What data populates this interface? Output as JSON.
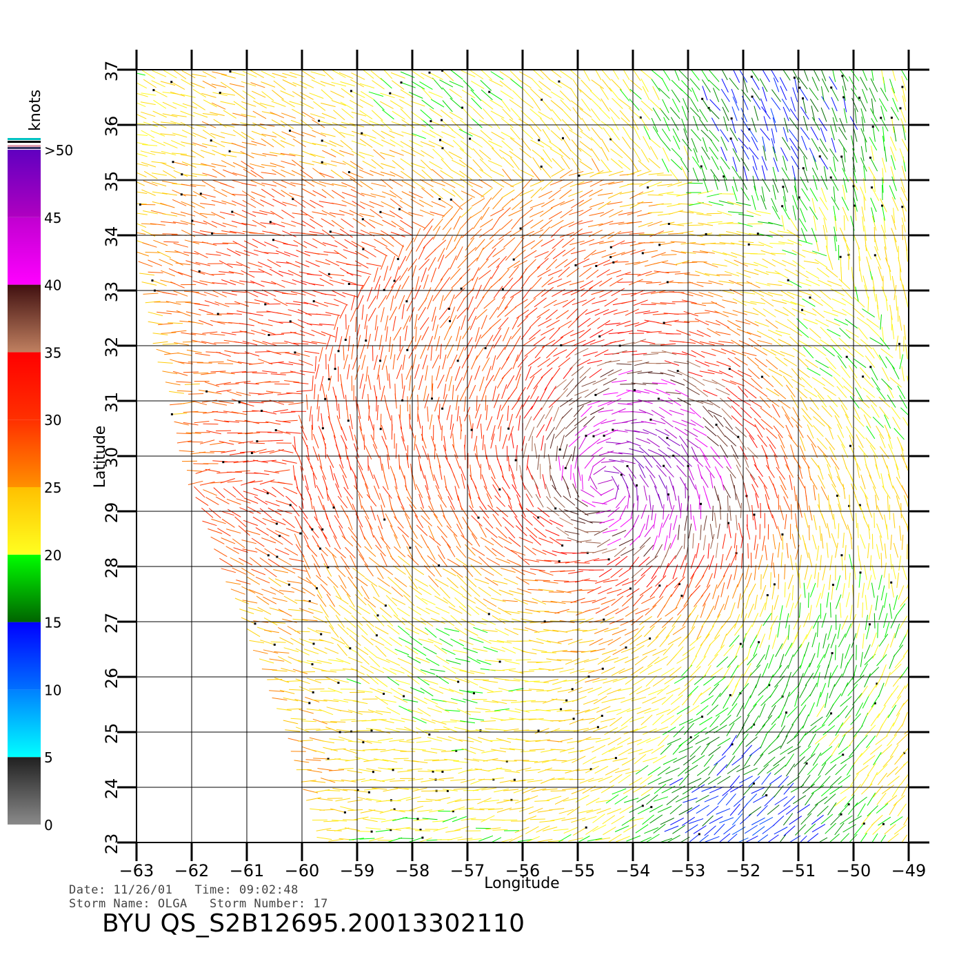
{
  "colorbar": {
    "unit": "knots",
    "labels": [
      ">50",
      "45",
      "40",
      "35",
      "30",
      "25",
      "20",
      "15",
      "10",
      "5",
      "0"
    ],
    "bins": [
      {
        "from": 0,
        "to": 5,
        "colors": [
          "#8a8a8a",
          "#202020"
        ]
      },
      {
        "from": 5,
        "to": 10,
        "colors": [
          "#00ffff",
          "#0080ff"
        ]
      },
      {
        "from": 10,
        "to": 15,
        "colors": [
          "#0070ff",
          "#0000ff"
        ]
      },
      {
        "from": 15,
        "to": 20,
        "colors": [
          "#006400",
          "#00ff00"
        ]
      },
      {
        "from": 20,
        "to": 25,
        "colors": [
          "#ffff20",
          "#ffc000"
        ]
      },
      {
        "from": 25,
        "to": 30,
        "colors": [
          "#ff9000",
          "#ff3000"
        ]
      },
      {
        "from": 30,
        "to": 35,
        "colors": [
          "#ff3000",
          "#ff0000"
        ]
      },
      {
        "from": 35,
        "to": 40,
        "colors": [
          "#c08060",
          "#401010"
        ]
      },
      {
        "from": 40,
        "to": 45,
        "colors": [
          "#ff00ff",
          "#c000d0"
        ]
      },
      {
        "from": 45,
        "to": 50,
        "colors": [
          "#b000c0",
          "#6000c0"
        ]
      }
    ]
  },
  "chart_data": {
    "type": "wind-vector-map",
    "xlabel": "Longitude",
    "ylabel": "Latitude",
    "xlim": [
      -63,
      -49
    ],
    "ylim": [
      23,
      37
    ],
    "xticks": [
      "−63",
      "−62",
      "−61",
      "−60",
      "−59",
      "−58",
      "−57",
      "−56",
      "−55",
      "−54",
      "−53",
      "−52",
      "−51",
      "−50",
      "−49"
    ],
    "yticks": [
      "23",
      "24",
      "25",
      "26",
      "27",
      "28",
      "29",
      "30",
      "31",
      "32",
      "33",
      "34",
      "35",
      "36",
      "37"
    ],
    "grid": true,
    "swath_left_edge": [
      [
        23,
        -59.6
      ],
      [
        24,
        -59.9
      ],
      [
        25,
        -60.2
      ],
      [
        26,
        -60.6
      ],
      [
        27,
        -61.0
      ],
      [
        28,
        -61.4
      ],
      [
        29,
        -61.8
      ],
      [
        30,
        -62.1
      ],
      [
        31,
        -62.3
      ],
      [
        32,
        -62.6
      ],
      [
        33,
        -62.8
      ],
      [
        34,
        -63.0
      ],
      [
        37,
        -63.0
      ]
    ],
    "speed_regions": [
      {
        "lon": -53.5,
        "lat": 30.0,
        "peak_knots": 44,
        "radius_deg": 2.2
      },
      {
        "lon": -58.5,
        "lat": 31.5,
        "peak_knots": 32,
        "radius_deg": 4.0
      },
      {
        "lon": -52.0,
        "lat": 36.0,
        "peak_knots": 16,
        "radius_deg": 2.0
      },
      {
        "lon": -52.5,
        "lat": 23.5,
        "peak_knots": 12,
        "radius_deg": 2.0
      }
    ],
    "circulation_center": {
      "lon": -54.5,
      "lat": 29.5
    }
  },
  "info": {
    "date_label": "Date:",
    "date": "11/26/01",
    "time_label": "Time:",
    "time": "09:02:48",
    "storm_name_label": "Storm Name:",
    "storm_name": "OLGA",
    "storm_number_label": "Storm Number:",
    "storm_number": "17"
  },
  "file_title": "BYU QS_S2B12695.20013302110"
}
